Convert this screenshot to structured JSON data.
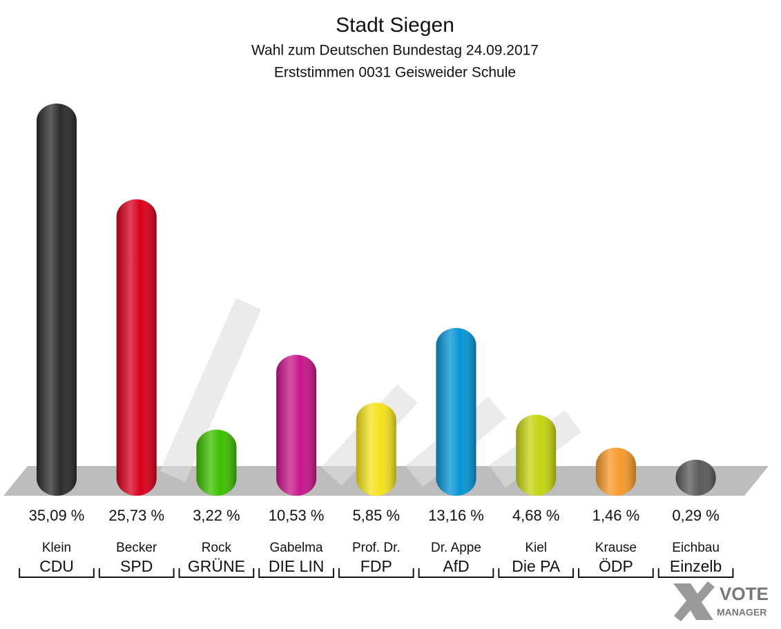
{
  "chart_data": {
    "type": "bar",
    "title": "Stadt Siegen",
    "subtitle": [
      "Wahl zum Deutschen Bundestag 24.09.2017",
      "Erststimmen 0031 Geisweider Schule"
    ],
    "categories": [
      "CDU",
      "SPD",
      "GRÜNE",
      "DIE LIN",
      "FDP",
      "AfD",
      "Die PA",
      "ÖDP",
      "Einzelb"
    ],
    "candidates": [
      "Klein",
      "Becker",
      "Rock",
      "Gabelma",
      "Prof. Dr.",
      "Dr. Appe",
      "Kiel",
      "Krause",
      "Eichbau"
    ],
    "values": [
      35.09,
      25.73,
      3.22,
      10.53,
      5.85,
      13.16,
      4.68,
      1.46,
      0.29
    ],
    "value_labels": [
      "35,09 %",
      "25,73 %",
      "3,22 %",
      "10,53 %",
      "5,85 %",
      "13,16 %",
      "4,68 %",
      "1,46 %",
      "0,29 %"
    ],
    "colors": [
      "#2b2b2b",
      "#d8001c",
      "#3dbf00",
      "#c8168a",
      "#f4e31c",
      "#0596d6",
      "#c5d512",
      "#f79a2a",
      "#5a5a5a"
    ],
    "logo": [
      "VOTE",
      "MANAGER"
    ]
  }
}
